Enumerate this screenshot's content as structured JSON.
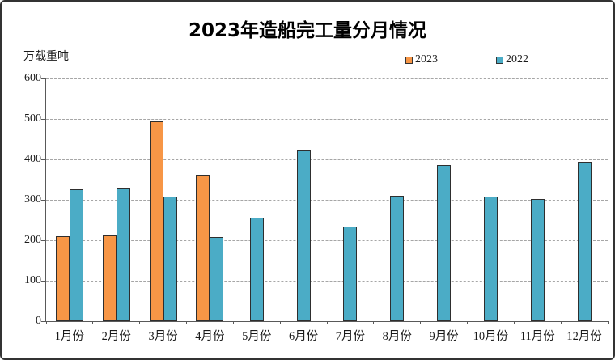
{
  "chart_data": {
    "type": "bar",
    "title": "2023年造船完工量分月情况",
    "unit_label": "万载重吨",
    "xlabel": "",
    "ylabel": "万载重吨",
    "categories": [
      "1月份",
      "2月份",
      "3月份",
      "4月份",
      "5月份",
      "6月份",
      "7月份",
      "8月份",
      "9月份",
      "10月份",
      "11月份",
      "12月份"
    ],
    "series": [
      {
        "name": "2023",
        "color": "#F79646",
        "values": [
          211,
          212,
          494,
          363,
          null,
          null,
          null,
          null,
          null,
          null,
          null,
          null
        ]
      },
      {
        "name": "2022",
        "color": "#4BACC6",
        "values": [
          327,
          329,
          309,
          209,
          256,
          422,
          235,
          310,
          386,
          308,
          303,
          395
        ]
      }
    ],
    "ylim": [
      0,
      600
    ],
    "yticks": [
      0,
      100,
      200,
      300,
      400,
      500,
      600
    ],
    "grid": "horizontal-dashed",
    "legend_position": "top-right",
    "colors": {
      "grid": "#a6a6a6",
      "axis": "#595959",
      "bar_border": "#2e2e2e",
      "frame_border": "#333333",
      "text": "#1a1a1a"
    }
  }
}
